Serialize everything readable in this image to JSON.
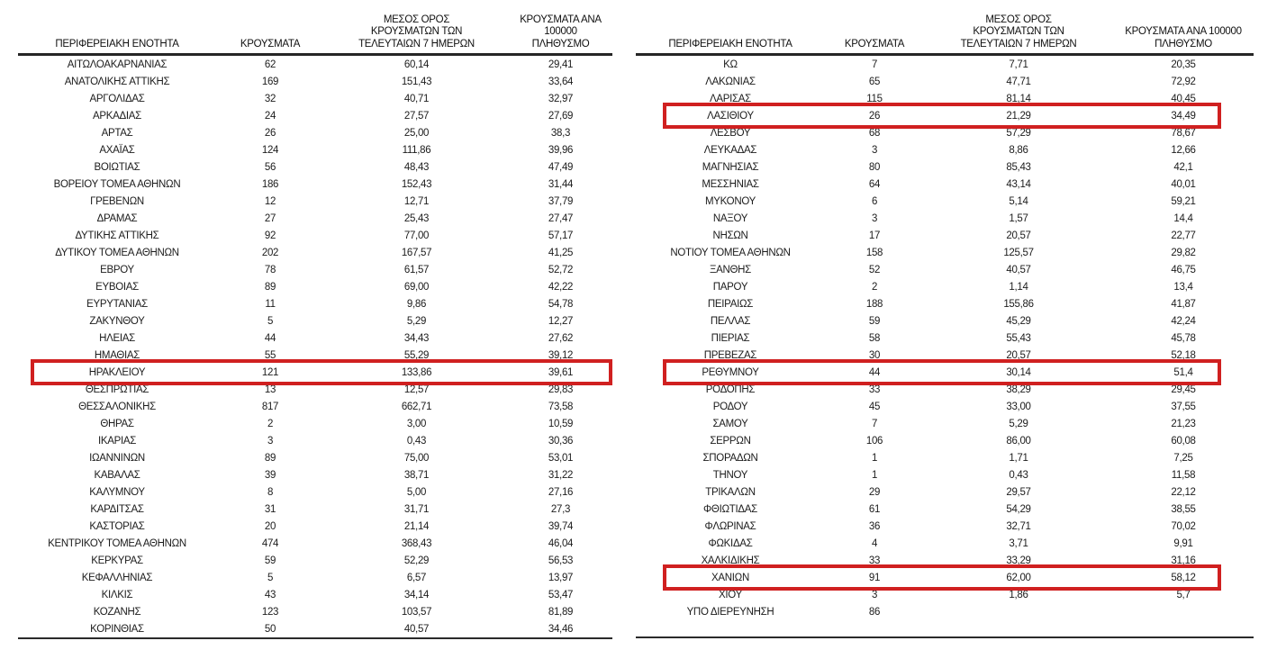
{
  "highlight_color": "#d02020",
  "columns": {
    "region": "ΠΕΡΙΦΕΡΕΙΑΚΗ ΕΝΟΤΗΤΑ",
    "cases": "ΚΡΟΥΣΜΑΤΑ",
    "avg7": "ΜΕΣΟΣ ΟΡΟΣ\nΚΡΟΥΣΜΑΤΩΝ ΤΩΝ\nΤΕΛΕΥΤΑΙΩΝ 7 ΗΜΕΡΩΝ",
    "per100k": "ΚΡΟΥΣΜΑΤΑ ΑΝΑ 100000\nΠΛΗΘΥΣΜΟ"
  },
  "left_table": {
    "rows": [
      {
        "region": "ΑΙΤΩΛΟΑΚΑΡΝΑΝΙΑΣ",
        "cases": "62",
        "avg7": "60,14",
        "per100k": "29,41",
        "highlighted": false
      },
      {
        "region": "ΑΝΑΤΟΛΙΚΗΣ ΑΤΤΙΚΗΣ",
        "cases": "169",
        "avg7": "151,43",
        "per100k": "33,64",
        "highlighted": false
      },
      {
        "region": "ΑΡΓΟΛΙΔΑΣ",
        "cases": "32",
        "avg7": "40,71",
        "per100k": "32,97",
        "highlighted": false
      },
      {
        "region": "ΑΡΚΑΔΙΑΣ",
        "cases": "24",
        "avg7": "27,57",
        "per100k": "27,69",
        "highlighted": false
      },
      {
        "region": "ΑΡΤΑΣ",
        "cases": "26",
        "avg7": "25,00",
        "per100k": "38,3",
        "highlighted": false
      },
      {
        "region": "ΑΧΑΪΑΣ",
        "cases": "124",
        "avg7": "111,86",
        "per100k": "39,96",
        "highlighted": false
      },
      {
        "region": "ΒΟΙΩΤΙΑΣ",
        "cases": "56",
        "avg7": "48,43",
        "per100k": "47,49",
        "highlighted": false
      },
      {
        "region": "ΒΟΡΕΙΟΥ ΤΟΜΕΑ ΑΘΗΝΩΝ",
        "cases": "186",
        "avg7": "152,43",
        "per100k": "31,44",
        "highlighted": false
      },
      {
        "region": "ΓΡΕΒΕΝΩΝ",
        "cases": "12",
        "avg7": "12,71",
        "per100k": "37,79",
        "highlighted": false
      },
      {
        "region": "ΔΡΑΜΑΣ",
        "cases": "27",
        "avg7": "25,43",
        "per100k": "27,47",
        "highlighted": false
      },
      {
        "region": "ΔΥΤΙΚΗΣ ΑΤΤΙΚΗΣ",
        "cases": "92",
        "avg7": "77,00",
        "per100k": "57,17",
        "highlighted": false
      },
      {
        "region": "ΔΥΤΙΚΟΥ ΤΟΜΕΑ ΑΘΗΝΩΝ",
        "cases": "202",
        "avg7": "167,57",
        "per100k": "41,25",
        "highlighted": false
      },
      {
        "region": "ΕΒΡΟΥ",
        "cases": "78",
        "avg7": "61,57",
        "per100k": "52,72",
        "highlighted": false
      },
      {
        "region": "ΕΥΒΟΙΑΣ",
        "cases": "89",
        "avg7": "69,00",
        "per100k": "42,22",
        "highlighted": false
      },
      {
        "region": "ΕΥΡΥΤΑΝΙΑΣ",
        "cases": "11",
        "avg7": "9,86",
        "per100k": "54,78",
        "highlighted": false
      },
      {
        "region": "ΖΑΚΥΝΘΟΥ",
        "cases": "5",
        "avg7": "5,29",
        "per100k": "12,27",
        "highlighted": false
      },
      {
        "region": "ΗΛΕΙΑΣ",
        "cases": "44",
        "avg7": "34,43",
        "per100k": "27,62",
        "highlighted": false
      },
      {
        "region": "ΗΜΑΘΙΑΣ",
        "cases": "55",
        "avg7": "55,29",
        "per100k": "39,12",
        "highlighted": false
      },
      {
        "region": "ΗΡΑΚΛΕΙΟΥ",
        "cases": "121",
        "avg7": "133,86",
        "per100k": "39,61",
        "highlighted": true
      },
      {
        "region": "ΘΕΣΠΡΩΤΙΑΣ",
        "cases": "13",
        "avg7": "12,57",
        "per100k": "29,83",
        "highlighted": false
      },
      {
        "region": "ΘΕΣΣΑΛΟΝΙΚΗΣ",
        "cases": "817",
        "avg7": "662,71",
        "per100k": "73,58",
        "highlighted": false
      },
      {
        "region": "ΘΗΡΑΣ",
        "cases": "2",
        "avg7": "3,00",
        "per100k": "10,59",
        "highlighted": false
      },
      {
        "region": "ΙΚΑΡΙΑΣ",
        "cases": "3",
        "avg7": "0,43",
        "per100k": "30,36",
        "highlighted": false
      },
      {
        "region": "ΙΩΑΝΝΙΝΩΝ",
        "cases": "89",
        "avg7": "75,00",
        "per100k": "53,01",
        "highlighted": false
      },
      {
        "region": "ΚΑΒΑΛΑΣ",
        "cases": "39",
        "avg7": "38,71",
        "per100k": "31,22",
        "highlighted": false
      },
      {
        "region": "ΚΑΛΥΜΝΟΥ",
        "cases": "8",
        "avg7": "5,00",
        "per100k": "27,16",
        "highlighted": false
      },
      {
        "region": "ΚΑΡΔΙΤΣΑΣ",
        "cases": "31",
        "avg7": "31,71",
        "per100k": "27,3",
        "highlighted": false
      },
      {
        "region": "ΚΑΣΤΟΡΙΑΣ",
        "cases": "20",
        "avg7": "21,14",
        "per100k": "39,74",
        "highlighted": false
      },
      {
        "region": "ΚΕΝΤΡΙΚΟΥ ΤΟΜΕΑ ΑΘΗΝΩΝ",
        "cases": "474",
        "avg7": "368,43",
        "per100k": "46,04",
        "highlighted": false
      },
      {
        "region": "ΚΕΡΚΥΡΑΣ",
        "cases": "59",
        "avg7": "52,29",
        "per100k": "56,53",
        "highlighted": false
      },
      {
        "region": "ΚΕΦΑΛΛΗΝΙΑΣ",
        "cases": "5",
        "avg7": "6,57",
        "per100k": "13,97",
        "highlighted": false
      },
      {
        "region": "ΚΙΛΚΙΣ",
        "cases": "43",
        "avg7": "34,14",
        "per100k": "53,47",
        "highlighted": false
      },
      {
        "region": "ΚΟΖΑΝΗΣ",
        "cases": "123",
        "avg7": "103,57",
        "per100k": "81,89",
        "highlighted": false
      },
      {
        "region": "ΚΟΡΙΝΘΙΑΣ",
        "cases": "50",
        "avg7": "40,57",
        "per100k": "34,46",
        "highlighted": false
      }
    ]
  },
  "right_table": {
    "rows": [
      {
        "region": "ΚΩ",
        "cases": "7",
        "avg7": "7,71",
        "per100k": "20,35",
        "highlighted": false
      },
      {
        "region": "ΛΑΚΩΝΙΑΣ",
        "cases": "65",
        "avg7": "47,71",
        "per100k": "72,92",
        "highlighted": false
      },
      {
        "region": "ΛΑΡΙΣΑΣ",
        "cases": "115",
        "avg7": "81,14",
        "per100k": "40,45",
        "highlighted": false
      },
      {
        "region": "ΛΑΣΙΘΙΟΥ",
        "cases": "26",
        "avg7": "21,29",
        "per100k": "34,49",
        "highlighted": true
      },
      {
        "region": "ΛΕΣΒΟΥ",
        "cases": "68",
        "avg7": "57,29",
        "per100k": "78,67",
        "highlighted": false
      },
      {
        "region": "ΛΕΥΚΑΔΑΣ",
        "cases": "3",
        "avg7": "8,86",
        "per100k": "12,66",
        "highlighted": false
      },
      {
        "region": "ΜΑΓΝΗΣΙΑΣ",
        "cases": "80",
        "avg7": "85,43",
        "per100k": "42,1",
        "highlighted": false
      },
      {
        "region": "ΜΕΣΣΗΝΙΑΣ",
        "cases": "64",
        "avg7": "43,14",
        "per100k": "40,01",
        "highlighted": false
      },
      {
        "region": "ΜΥΚΟΝΟΥ",
        "cases": "6",
        "avg7": "5,14",
        "per100k": "59,21",
        "highlighted": false
      },
      {
        "region": "ΝΑΞΟΥ",
        "cases": "3",
        "avg7": "1,57",
        "per100k": "14,4",
        "highlighted": false
      },
      {
        "region": "ΝΗΣΩΝ",
        "cases": "17",
        "avg7": "20,57",
        "per100k": "22,77",
        "highlighted": false
      },
      {
        "region": "ΝΟΤΙΟΥ ΤΟΜΕΑ ΑΘΗΝΩΝ",
        "cases": "158",
        "avg7": "125,57",
        "per100k": "29,82",
        "highlighted": false
      },
      {
        "region": "ΞΑΝΘΗΣ",
        "cases": "52",
        "avg7": "40,57",
        "per100k": "46,75",
        "highlighted": false
      },
      {
        "region": "ΠΑΡΟΥ",
        "cases": "2",
        "avg7": "1,14",
        "per100k": "13,4",
        "highlighted": false
      },
      {
        "region": "ΠΕΙΡΑΙΩΣ",
        "cases": "188",
        "avg7": "155,86",
        "per100k": "41,87",
        "highlighted": false
      },
      {
        "region": "ΠΕΛΛΑΣ",
        "cases": "59",
        "avg7": "45,29",
        "per100k": "42,24",
        "highlighted": false
      },
      {
        "region": "ΠΙΕΡΙΑΣ",
        "cases": "58",
        "avg7": "55,43",
        "per100k": "45,78",
        "highlighted": false
      },
      {
        "region": "ΠΡΕΒΕΖΑΣ",
        "cases": "30",
        "avg7": "20,57",
        "per100k": "52,18",
        "highlighted": false
      },
      {
        "region": "ΡΕΘΥΜΝΟΥ",
        "cases": "44",
        "avg7": "30,14",
        "per100k": "51,4",
        "highlighted": true
      },
      {
        "region": "ΡΟΔΟΠΗΣ",
        "cases": "33",
        "avg7": "38,29",
        "per100k": "29,45",
        "highlighted": false
      },
      {
        "region": "ΡΟΔΟΥ",
        "cases": "45",
        "avg7": "33,00",
        "per100k": "37,55",
        "highlighted": false
      },
      {
        "region": "ΣΑΜΟΥ",
        "cases": "7",
        "avg7": "5,29",
        "per100k": "21,23",
        "highlighted": false
      },
      {
        "region": "ΣΕΡΡΩΝ",
        "cases": "106",
        "avg7": "86,00",
        "per100k": "60,08",
        "highlighted": false
      },
      {
        "region": "ΣΠΟΡΑΔΩΝ",
        "cases": "1",
        "avg7": "1,71",
        "per100k": "7,25",
        "highlighted": false
      },
      {
        "region": "ΤΗΝΟΥ",
        "cases": "1",
        "avg7": "0,43",
        "per100k": "11,58",
        "highlighted": false
      },
      {
        "region": "ΤΡΙΚΑΛΩΝ",
        "cases": "29",
        "avg7": "29,57",
        "per100k": "22,12",
        "highlighted": false
      },
      {
        "region": "ΦΘΙΩΤΙΔΑΣ",
        "cases": "61",
        "avg7": "54,29",
        "per100k": "38,55",
        "highlighted": false
      },
      {
        "region": "ΦΛΩΡΙΝΑΣ",
        "cases": "36",
        "avg7": "32,71",
        "per100k": "70,02",
        "highlighted": false
      },
      {
        "region": "ΦΩΚΙΔΑΣ",
        "cases": "4",
        "avg7": "3,71",
        "per100k": "9,91",
        "highlighted": false
      },
      {
        "region": "ΧΑΛΚΙΔΙΚΗΣ",
        "cases": "33",
        "avg7": "33,29",
        "per100k": "31,16",
        "highlighted": false
      },
      {
        "region": "ΧΑΝΙΩΝ",
        "cases": "91",
        "avg7": "62,00",
        "per100k": "58,12",
        "highlighted": true
      },
      {
        "region": "ΧΙΟΥ",
        "cases": "3",
        "avg7": "1,86",
        "per100k": "5,7",
        "highlighted": false
      },
      {
        "region": "ΥΠΟ ΔΙΕΡΕΥΝΗΣΗ",
        "cases": "86",
        "avg7": "",
        "per100k": "",
        "highlighted": false
      }
    ]
  }
}
